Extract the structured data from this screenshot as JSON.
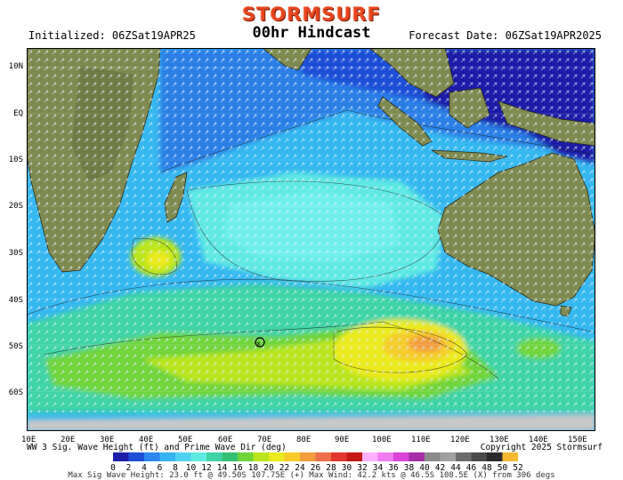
{
  "header": {
    "logo": "STORMSURF",
    "initialized": "Initialized: 06ZSat19APR25",
    "title": "00hr Hindcast",
    "forecast_date": "Forecast Date: 06ZSat19APR2025"
  },
  "axes": {
    "lat_labels": [
      "10N",
      "EQ",
      "10S",
      "20S",
      "30S",
      "40S",
      "50S",
      "60S"
    ],
    "lon_labels": [
      "10E",
      "20E",
      "30E",
      "40E",
      "50E",
      "60E",
      "70E",
      "80E",
      "90E",
      "100E",
      "110E",
      "120E",
      "130E",
      "140E",
      "150E"
    ]
  },
  "footer": {
    "variable": "WW 3 Sig. Wave Height (ft) and Prime Wave Dir (deg)",
    "copyright": "Copyright 2025 Stormsurf",
    "stats": "Max Sig Wave Height: 23.0 ft @ 49.50S 107.75E (+)  Max Wind: 42.2 kts @ 46.5S 108.5E (X) from 306 degs"
  },
  "colorbar": {
    "labels": [
      "0",
      "2",
      "4",
      "6",
      "8",
      "10",
      "12",
      "14",
      "16",
      "18",
      "20",
      "22",
      "24",
      "26",
      "28",
      "30",
      "32",
      "34",
      "36",
      "38",
      "40",
      "42",
      "44",
      "46",
      "48",
      "50",
      "52"
    ],
    "colors": [
      "#1c1fa8",
      "#1f4fd6",
      "#2e86ee",
      "#38b2f2",
      "#4fd2ee",
      "#5ee9e2",
      "#40d3a6",
      "#34c072",
      "#6fd43a",
      "#b9e51c",
      "#eaea1f",
      "#f6cc2a",
      "#f19c3d",
      "#ec6e4a",
      "#e2372e",
      "#c61616",
      "#ffb0ff",
      "#f07cf0",
      "#d944d9",
      "#a62ea6",
      "#8a8a8a",
      "#a0a0a0",
      "#6c6c6c",
      "#4a4a4a",
      "#2a2a2a",
      "#f6b830"
    ]
  }
}
